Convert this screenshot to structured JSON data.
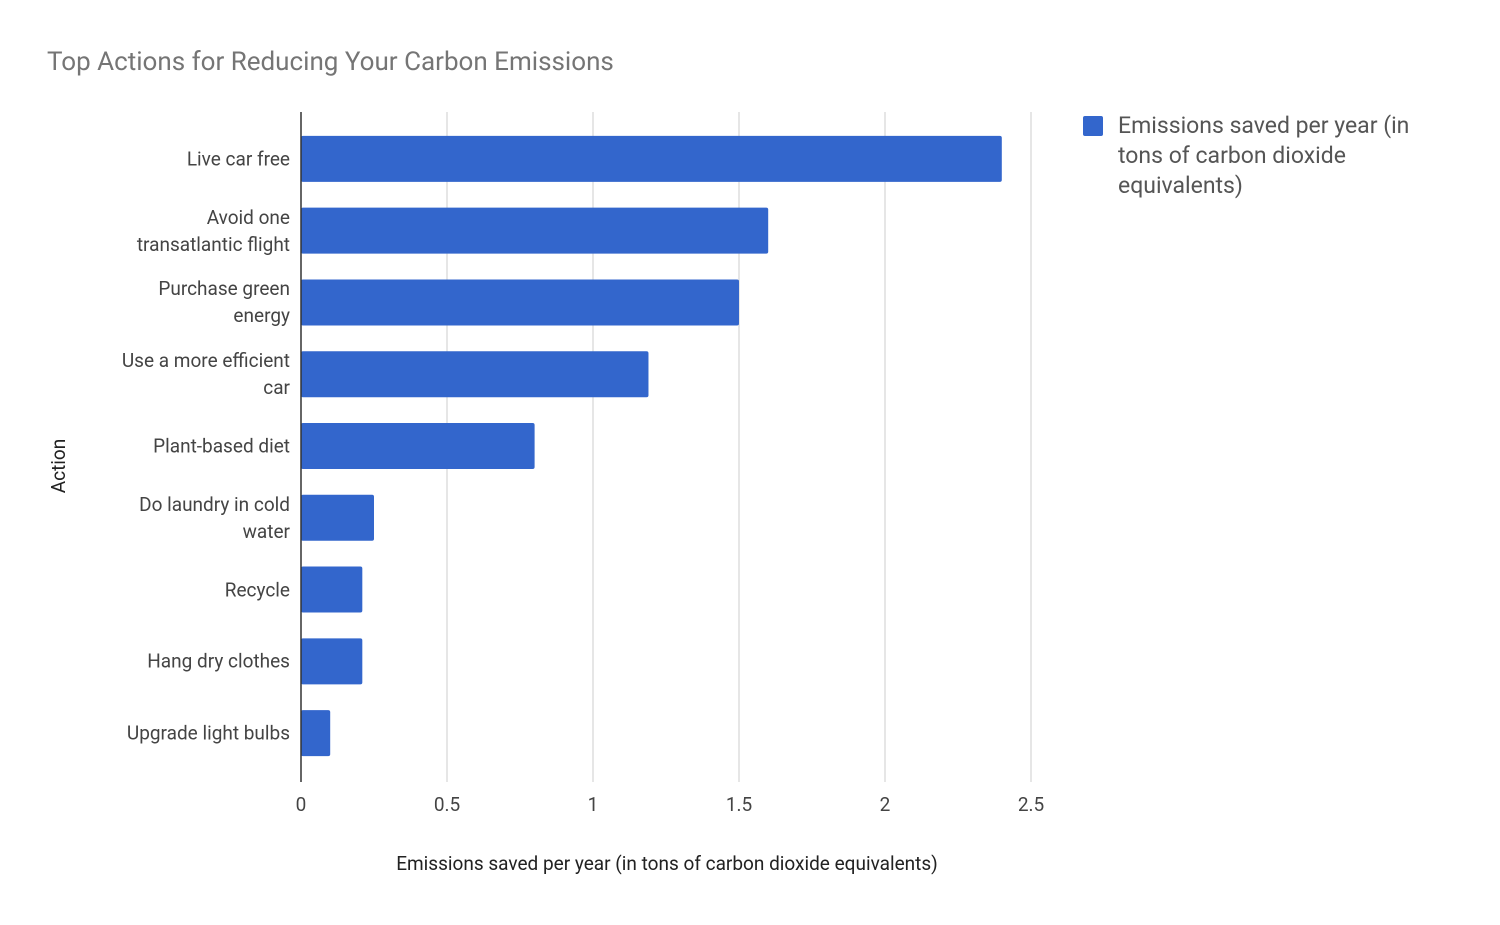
{
  "chart_data": {
    "type": "bar",
    "orientation": "horizontal",
    "title": "Top Actions for Reducing Your Carbon Emissions",
    "x_label": "Emissions saved per year (in tons of carbon dioxide equivalents)",
    "y_label": "Action",
    "categories": [
      "Live car free",
      "Avoid one transatlantic flight",
      "Purchase green energy",
      "Use a more efficient car",
      "Plant-based diet",
      "Do laundry in cold water",
      "Recycle",
      "Hang dry clothes",
      "Upgrade light bulbs"
    ],
    "series": [
      {
        "name": "Emissions saved per year (in tons of carbon dioxide equivalents)",
        "color": "#3366cc",
        "values": [
          2.4,
          1.6,
          1.5,
          1.19,
          0.8,
          0.25,
          0.21,
          0.21,
          0.1
        ]
      }
    ],
    "xlim": [
      0,
      2.5
    ],
    "xticks": [
      0,
      0.5,
      1,
      1.5,
      2,
      2.5
    ],
    "grid": true,
    "legend": "right"
  }
}
